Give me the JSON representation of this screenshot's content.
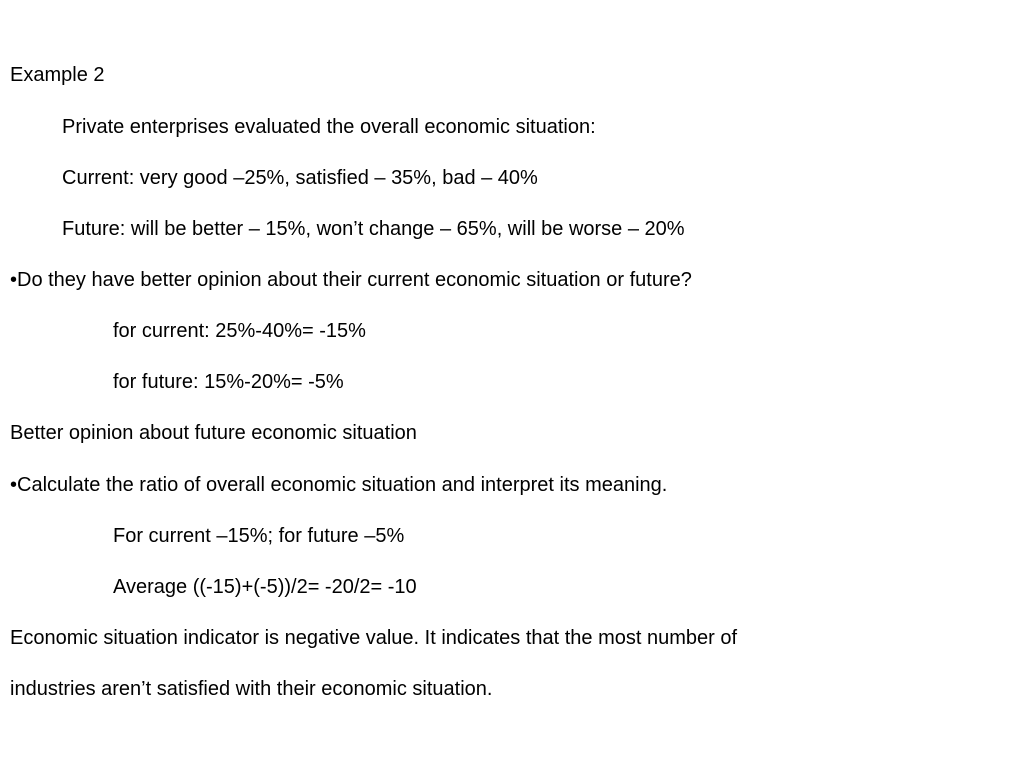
{
  "title": "Example 2",
  "lines": [
    "Private enterprises evaluated the overall economic situation:",
    "Current: very good –25%, satisfied – 35%, bad – 40%",
    "Future: will be better – 15%, won’t change – 65%, will be worse – 20%",
    "•Do they have better opinion about their current economic situation or future?",
    "for current: 25%-40%= -15%",
    "for future: 15%-20%= -5%",
    "Better opinion about future economic situation",
    "•Calculate the ratio of overall economic situation and interpret its meaning.",
    "For current –15%; for future –5%",
    "Average ((-15)+(-5))/2= -20/2= -10",
    "Economic situation indicator is negative value. It indicates that the most number of",
    "industries aren’t satisfied with their economic situation."
  ]
}
